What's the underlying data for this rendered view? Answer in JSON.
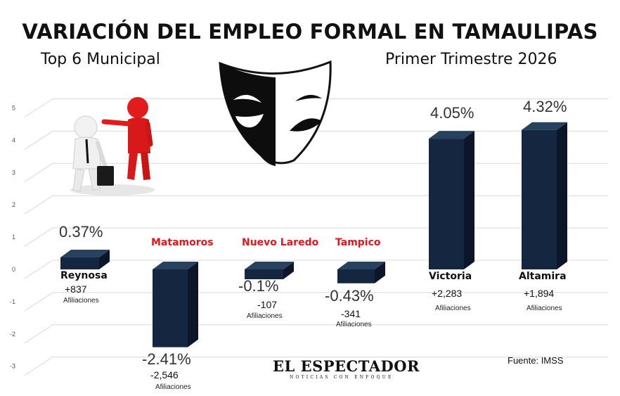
{
  "header": {
    "title": "VARIACIÓN DEL EMPLEO FORMAL EN TAMAULIPAS",
    "subtitle_left": "Top 6 Municipal",
    "subtitle_right": "Primer Trimestre 2026"
  },
  "footer": {
    "brand": "EL ESPECTADOR",
    "brand_tagline": "NOTICIAS CON ENFOQUE",
    "source": "Fuente: IMSS"
  },
  "illustrations": [
    "businessmen-pointing-icon",
    "theater-mask-icon"
  ],
  "colors": {
    "bar": "#152640",
    "bar_side": "#0c1628",
    "bar_top": "#27415f",
    "negative_label": "#e8141b",
    "positive_label": "#111111"
  },
  "chart_data": {
    "type": "bar",
    "categories": [
      "Reynosa",
      "Matamoros",
      "Nuevo Laredo",
      "Tampico",
      "Victoria",
      "Altamira"
    ],
    "values": [
      0.37,
      -2.41,
      -0.1,
      -0.43,
      4.05,
      4.32
    ],
    "value_labels": [
      "0.37%",
      "-2.41%",
      "-0.1%",
      "-0.43%",
      "4.05%",
      "4.32%"
    ],
    "affiliations": [
      "+837",
      "-2,546",
      "-107",
      "-341",
      "+2,283",
      "+1,894"
    ],
    "affiliations_label": "Afiliaciones",
    "y_ticks": [
      "5",
      "4",
      "3",
      "2",
      "1",
      "0",
      "-1",
      "-2",
      "-3"
    ],
    "ylim": [
      -3,
      5
    ],
    "grid": true
  }
}
